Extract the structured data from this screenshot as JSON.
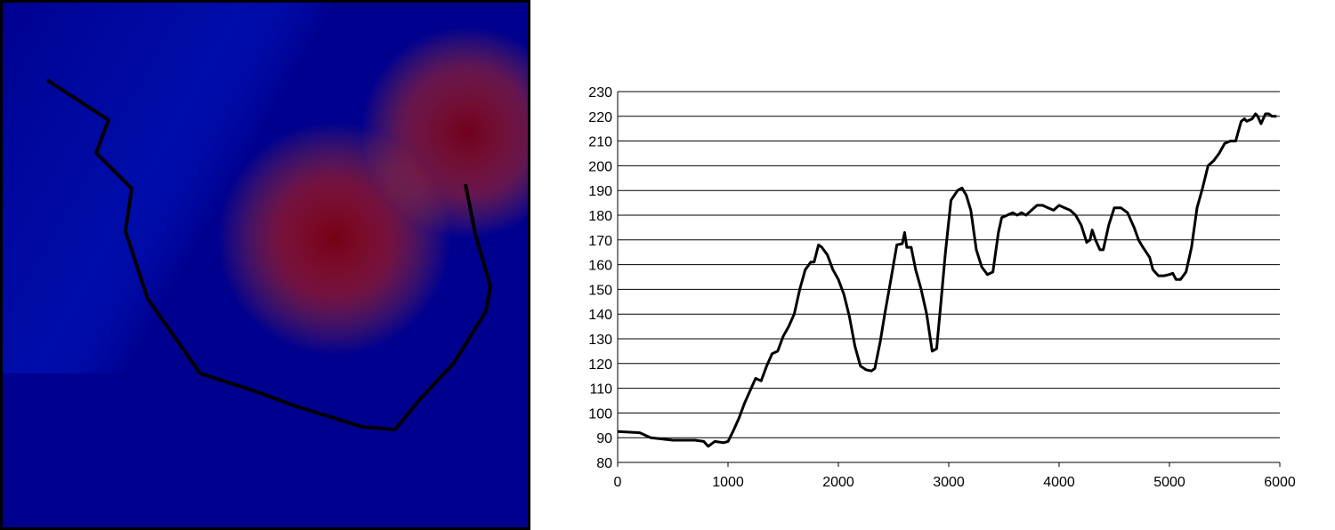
{
  "map": {
    "colormap": [
      "#00008f",
      "#0050ff",
      "#00d0ff",
      "#80ffb0",
      "#ffd000",
      "#ff5000",
      "#800000"
    ],
    "frame_color": "#000000",
    "profile_line_color": "#000000"
  },
  "chart_data": {
    "type": "line",
    "title": "",
    "xlabel": "",
    "ylabel": "",
    "xlim": [
      0,
      6000
    ],
    "ylim": [
      80,
      230
    ],
    "x_ticks": [
      "0",
      "1000",
      "2000",
      "3000",
      "4000",
      "5000",
      "6000"
    ],
    "y_ticks": [
      "80",
      "90",
      "100",
      "110",
      "120",
      "130",
      "140",
      "150",
      "160",
      "170",
      "180",
      "190",
      "200",
      "210",
      "220",
      "230"
    ],
    "grid": "horizontal",
    "legend": "none",
    "line_color": "#000000",
    "series": [
      {
        "x": [
          0,
          200,
          300,
          500,
          700,
          780,
          820,
          880,
          960,
          1000,
          1050,
          1100,
          1150,
          1200,
          1250,
          1300,
          1350,
          1400,
          1450,
          1500,
          1550,
          1600,
          1650,
          1700,
          1750,
          1780,
          1820,
          1850,
          1900,
          1950,
          2000,
          2050,
          2100,
          2150,
          2200,
          2250,
          2300,
          2330,
          2380,
          2420,
          2480,
          2530,
          2580,
          2600,
          2620,
          2660,
          2700,
          2750,
          2800,
          2850,
          2890,
          2930,
          2970,
          3020,
          3080,
          3120,
          3160,
          3200,
          3250,
          3300,
          3350,
          3400,
          3450,
          3480,
          3530,
          3580,
          3620,
          3660,
          3700,
          3750,
          3800,
          3850,
          3900,
          3950,
          4000,
          4050,
          4100,
          4150,
          4200,
          4250,
          4280,
          4300,
          4330,
          4370,
          4400,
          4450,
          4500,
          4560,
          4620,
          4680,
          4720,
          4760,
          4820,
          4850,
          4900,
          4950,
          5000,
          5030,
          5060,
          5100,
          5150,
          5200,
          5250,
          5300,
          5350,
          5400,
          5450,
          5500,
          5550,
          5600,
          5650,
          5680,
          5700,
          5750,
          5780,
          5800,
          5830,
          5870,
          5900,
          5930,
          5970
        ],
        "y": [
          92.5,
          92,
          90,
          89,
          89,
          88.5,
          86.5,
          88.5,
          88,
          88.5,
          93,
          98,
          104,
          109,
          114,
          113,
          119,
          124,
          125,
          131,
          135,
          140,
          150,
          158,
          161,
          161,
          168,
          167,
          164,
          158,
          154,
          148,
          139,
          127,
          119,
          117.5,
          117,
          118,
          129,
          140,
          155,
          168,
          168.5,
          173,
          167,
          167,
          158,
          150,
          140,
          125,
          126,
          145,
          165,
          186,
          190,
          191,
          188,
          182,
          166,
          159,
          156,
          157,
          173,
          179,
          180,
          181,
          180,
          181,
          180,
          182,
          184,
          184,
          183,
          182,
          184,
          183,
          182,
          180,
          176,
          169,
          170,
          174,
          170,
          166,
          166,
          176,
          183,
          183,
          181,
          175,
          170,
          167,
          163,
          158,
          155.5,
          155.5,
          156,
          156.5,
          154,
          154,
          157,
          167,
          183,
          191,
          200,
          202,
          205,
          209,
          210,
          210,
          218,
          219,
          218,
          219,
          221,
          220,
          217,
          221,
          221,
          220,
          220
        ]
      }
    ]
  }
}
